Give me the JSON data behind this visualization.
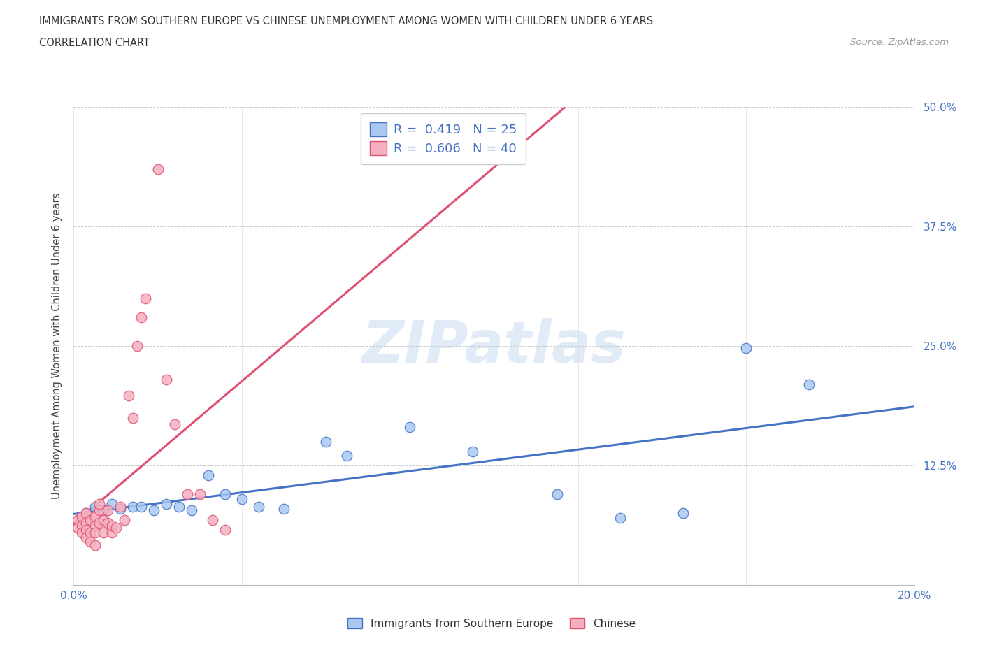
{
  "title_line1": "IMMIGRANTS FROM SOUTHERN EUROPE VS CHINESE UNEMPLOYMENT AMONG WOMEN WITH CHILDREN UNDER 6 YEARS",
  "title_line2": "CORRELATION CHART",
  "source_text": "Source: ZipAtlas.com",
  "ylabel": "Unemployment Among Women with Children Under 6 years",
  "xmin": 0.0,
  "xmax": 0.2,
  "ymin": 0.0,
  "ymax": 0.5,
  "xticks": [
    0.0,
    0.04,
    0.08,
    0.12,
    0.16,
    0.2
  ],
  "xtick_labels": [
    "0.0%",
    "",
    "",
    "",
    "",
    "20.0%"
  ],
  "yticks": [
    0.0,
    0.125,
    0.25,
    0.375,
    0.5
  ],
  "ytick_labels": [
    "",
    "12.5%",
    "25.0%",
    "37.5%",
    "50.0%"
  ],
  "blue_fill": "#A8C8F0",
  "blue_edge": "#4472C4",
  "pink_fill": "#F4B0C0",
  "pink_edge": "#E05070",
  "blue_line": "#4472C4",
  "pink_line": "#E05070",
  "legend_text_color": "#4472C4",
  "watermark": "ZIPatlas",
  "blue_x": [
    0.003,
    0.005,
    0.007,
    0.009,
    0.011,
    0.014,
    0.016,
    0.019,
    0.022,
    0.025,
    0.028,
    0.032,
    0.036,
    0.04,
    0.044,
    0.05,
    0.06,
    0.065,
    0.08,
    0.095,
    0.115,
    0.13,
    0.145,
    0.16,
    0.175
  ],
  "blue_y": [
    0.075,
    0.082,
    0.078,
    0.085,
    0.08,
    0.082,
    0.082,
    0.078,
    0.085,
    0.082,
    0.078,
    0.115,
    0.095,
    0.09,
    0.082,
    0.08,
    0.15,
    0.135,
    0.165,
    0.14,
    0.095,
    0.07,
    0.075,
    0.248,
    0.21
  ],
  "pink_x": [
    0.001,
    0.001,
    0.002,
    0.002,
    0.002,
    0.003,
    0.003,
    0.003,
    0.003,
    0.004,
    0.004,
    0.004,
    0.005,
    0.005,
    0.005,
    0.005,
    0.006,
    0.006,
    0.006,
    0.007,
    0.007,
    0.008,
    0.008,
    0.009,
    0.009,
    0.01,
    0.011,
    0.012,
    0.013,
    0.014,
    0.015,
    0.016,
    0.017,
    0.02,
    0.022,
    0.024,
    0.027,
    0.03,
    0.033,
    0.036
  ],
  "pink_y": [
    0.068,
    0.06,
    0.072,
    0.062,
    0.055,
    0.075,
    0.065,
    0.058,
    0.05,
    0.068,
    0.055,
    0.045,
    0.062,
    0.072,
    0.055,
    0.042,
    0.065,
    0.078,
    0.085,
    0.068,
    0.055,
    0.065,
    0.078,
    0.055,
    0.062,
    0.06,
    0.082,
    0.068,
    0.198,
    0.175,
    0.25,
    0.28,
    0.3,
    0.435,
    0.215,
    0.168,
    0.095,
    0.095,
    0.068,
    0.058
  ],
  "pink_line_x1": 0.0,
  "pink_line_x2": 0.036,
  "note_r_blue": "R =  0.419   N = 25",
  "note_r_pink": "R =  0.606   N = 40"
}
